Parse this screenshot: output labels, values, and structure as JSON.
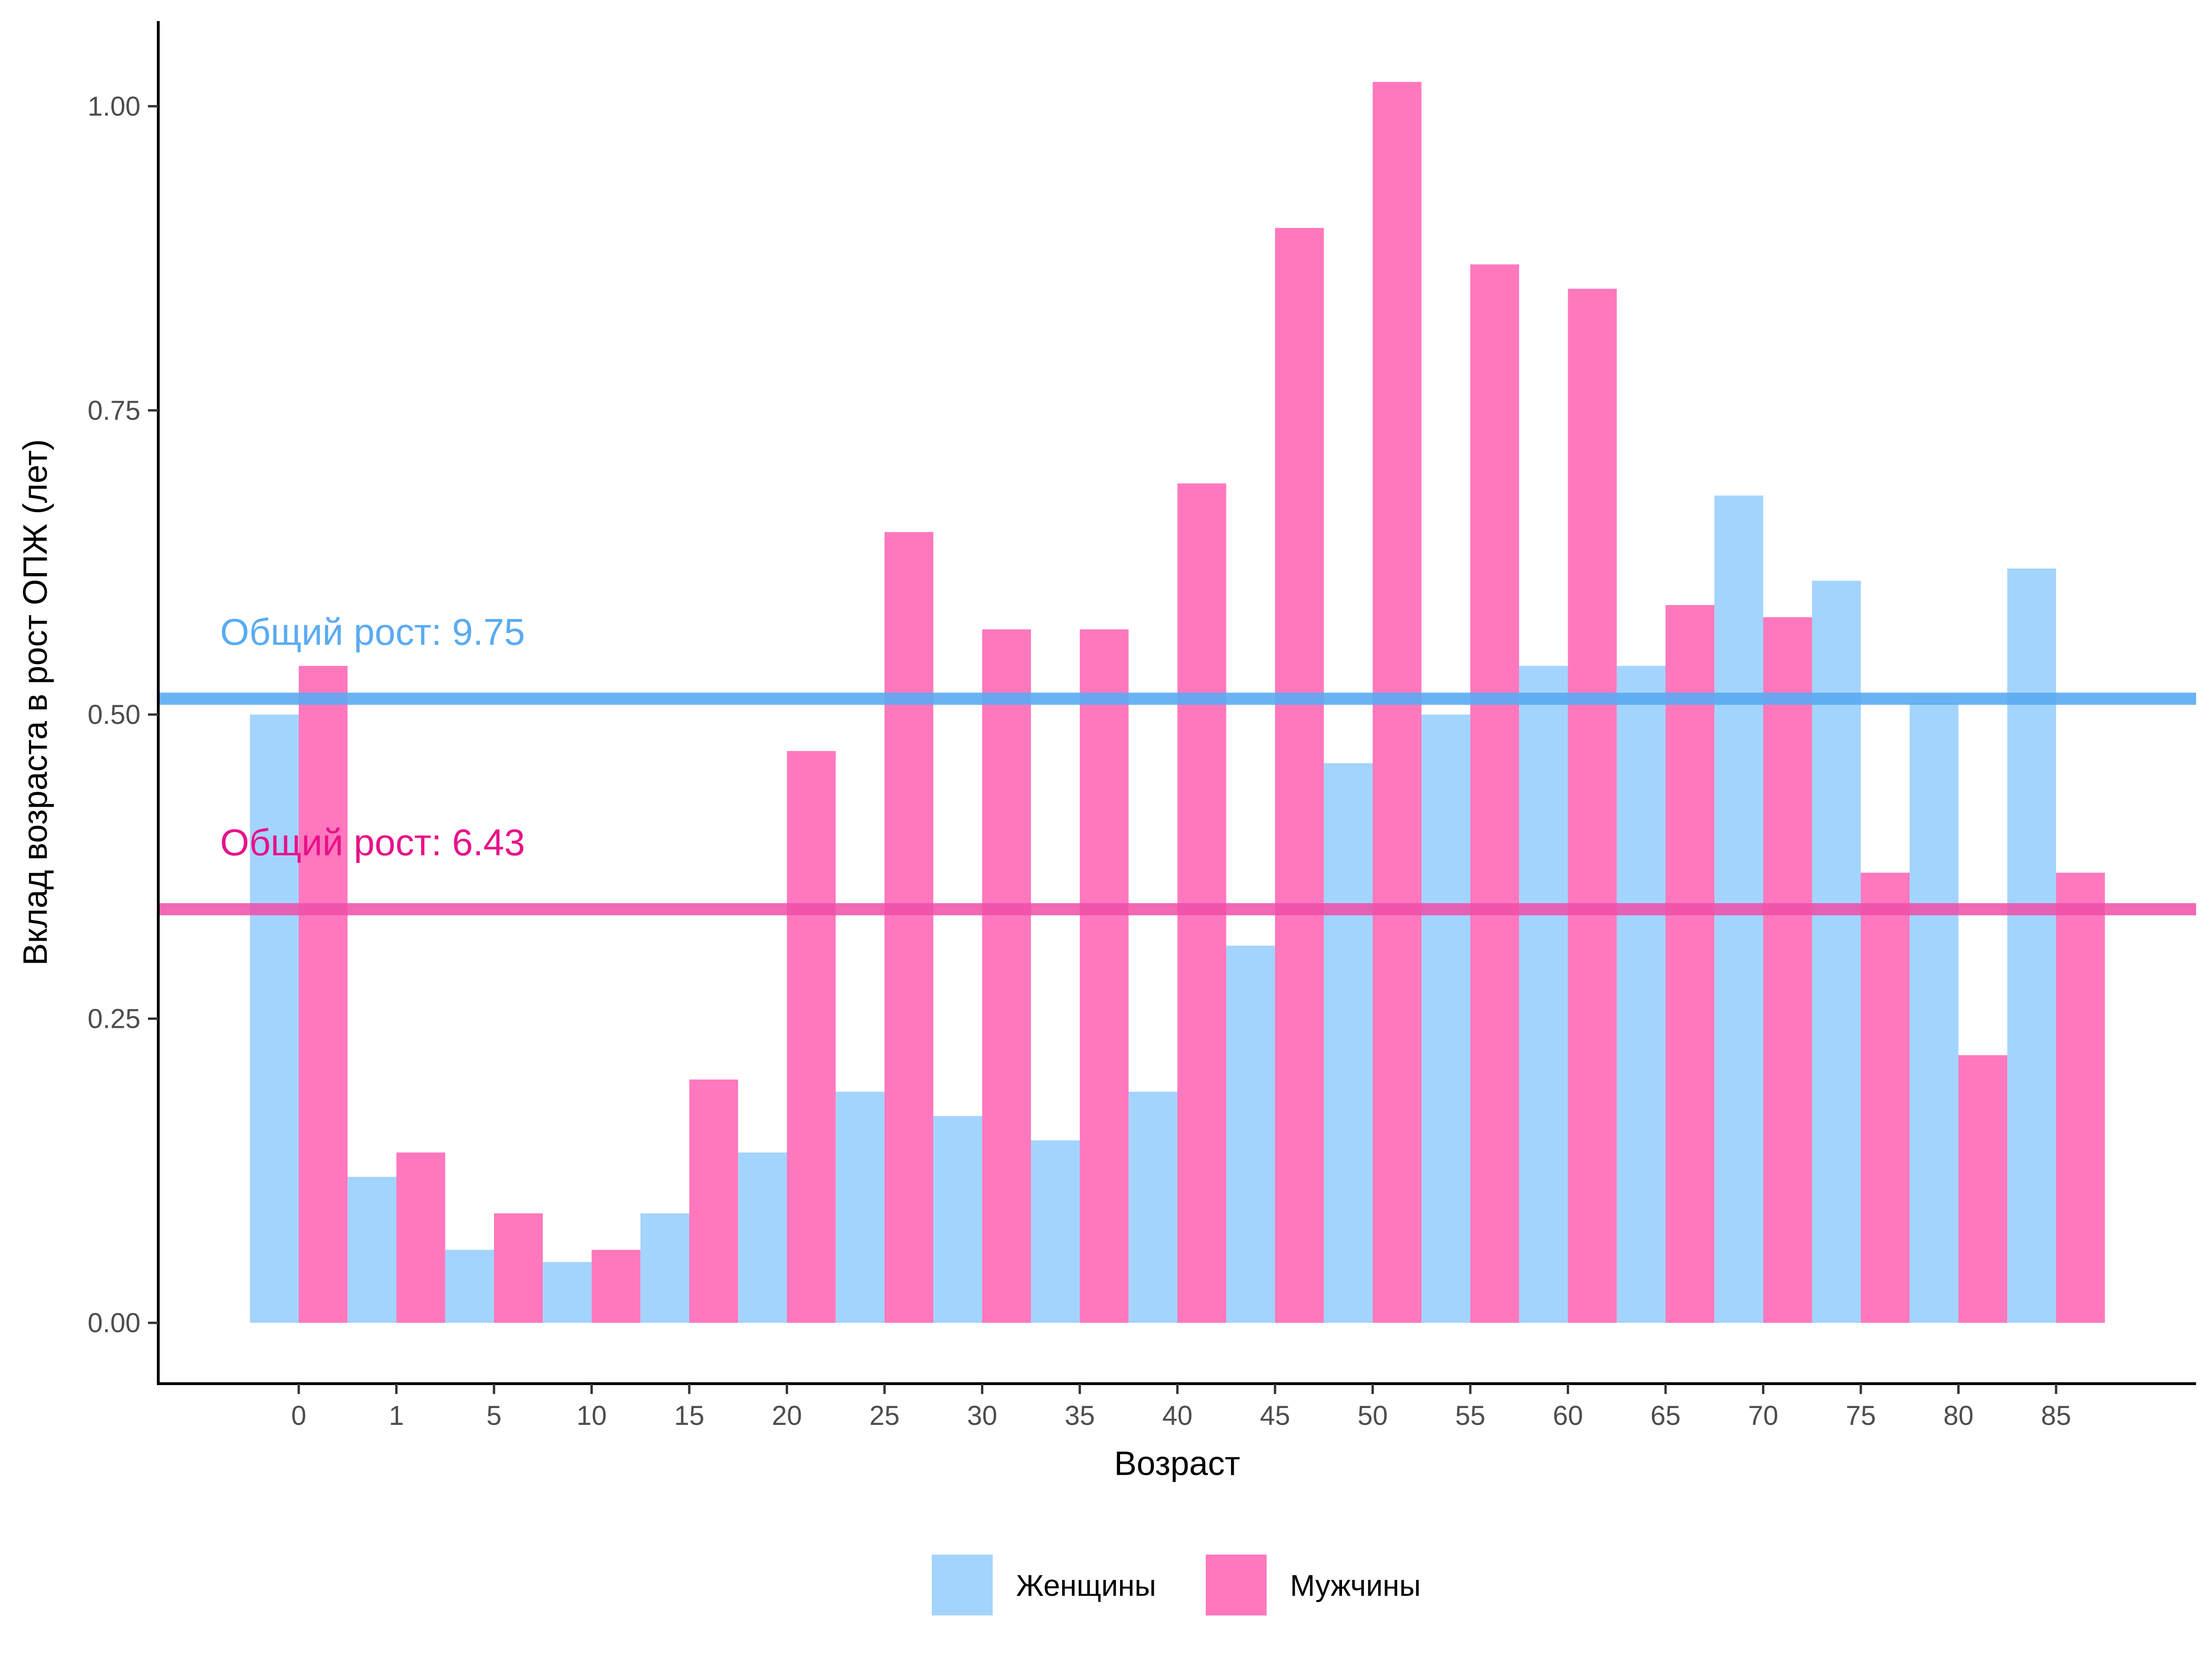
{
  "chart_data": {
    "type": "bar",
    "xlabel": "Возраст",
    "ylabel": "Вклад возраста в рост ОПЖ (лет)",
    "categories": [
      "0",
      "1",
      "5",
      "10",
      "15",
      "20",
      "25",
      "30",
      "35",
      "40",
      "45",
      "50",
      "55",
      "60",
      "65",
      "70",
      "75",
      "80",
      "85"
    ],
    "ylim": [
      -0.05,
      1.07
    ],
    "yticks": [
      0,
      0.25,
      0.5,
      0.75,
      1
    ],
    "ytick_labels": [
      "0.00",
      "0.25",
      "0.50",
      "0.75",
      "1.00"
    ],
    "grid": false,
    "legend_position": "bottom",
    "series": [
      {
        "name": "Женщины",
        "color": "#a3d4fd",
        "values": [
          0.5,
          0.12,
          0.06,
          0.05,
          0.09,
          0.14,
          0.19,
          0.17,
          0.15,
          0.19,
          0.31,
          0.46,
          0.5,
          0.54,
          0.54,
          0.68,
          0.61,
          0.51,
          0.62
        ]
      },
      {
        "name": "Мужчины",
        "color": "#ff78be",
        "values": [
          0.54,
          0.14,
          0.09,
          0.06,
          0.2,
          0.47,
          0.65,
          0.57,
          0.57,
          0.69,
          0.9,
          1.02,
          0.87,
          0.85,
          0.59,
          0.58,
          0.37,
          0.22,
          0.37
        ]
      }
    ],
    "reference_lines": [
      {
        "y": 0.513,
        "color": "#5aabf2",
        "label": "Общий рост: 9.75",
        "label_color": "#5aabf2"
      },
      {
        "y": 0.34,
        "color": "#ee4ea8",
        "label": "Общий рост: 6.43",
        "label_color": "#e8118a"
      }
    ]
  }
}
